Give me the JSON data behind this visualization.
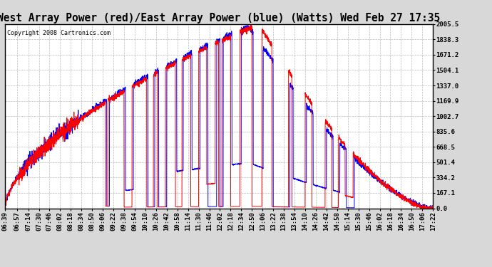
{
  "title": "West Array Power (red)/East Array Power (blue) (Watts) Wed Feb 27 17:35",
  "copyright": "Copyright 2008 Cartronics.com",
  "plot_bg_color": "#ffffff",
  "fig_bg_color": "#d8d8d8",
  "line_color_west": "#ff0000",
  "line_color_east": "#0000ff",
  "yticks": [
    0.0,
    167.1,
    334.2,
    501.4,
    668.5,
    835.6,
    1002.7,
    1169.9,
    1337.0,
    1504.1,
    1671.2,
    1838.3,
    2005.5
  ],
  "ytick_labels": [
    "0.0",
    "167.1",
    "334.2",
    "501.4",
    "668.5",
    "835.6",
    "1002.7",
    "1169.9",
    "1337.0",
    "1504.1",
    "1671.2",
    "1838.3",
    "2005.5"
  ],
  "ylim": [
    0,
    2005.5
  ],
  "grid_color": "#aaaaaa",
  "title_fontsize": 10.5,
  "tick_fontsize": 6.5,
  "copyright_fontsize": 6,
  "xtick_labels": [
    "06:39",
    "06:57",
    "07:14",
    "07:30",
    "07:46",
    "08:02",
    "08:18",
    "08:34",
    "08:50",
    "09:06",
    "09:22",
    "09:38",
    "09:54",
    "10:10",
    "10:26",
    "10:42",
    "10:58",
    "11:14",
    "11:30",
    "11:46",
    "12:02",
    "12:18",
    "12:34",
    "12:50",
    "13:06",
    "13:22",
    "13:38",
    "13:54",
    "14:10",
    "14:26",
    "14:42",
    "14:58",
    "15:14",
    "15:30",
    "15:46",
    "16:02",
    "16:18",
    "16:34",
    "16:50",
    "17:06",
    "17:22"
  ]
}
